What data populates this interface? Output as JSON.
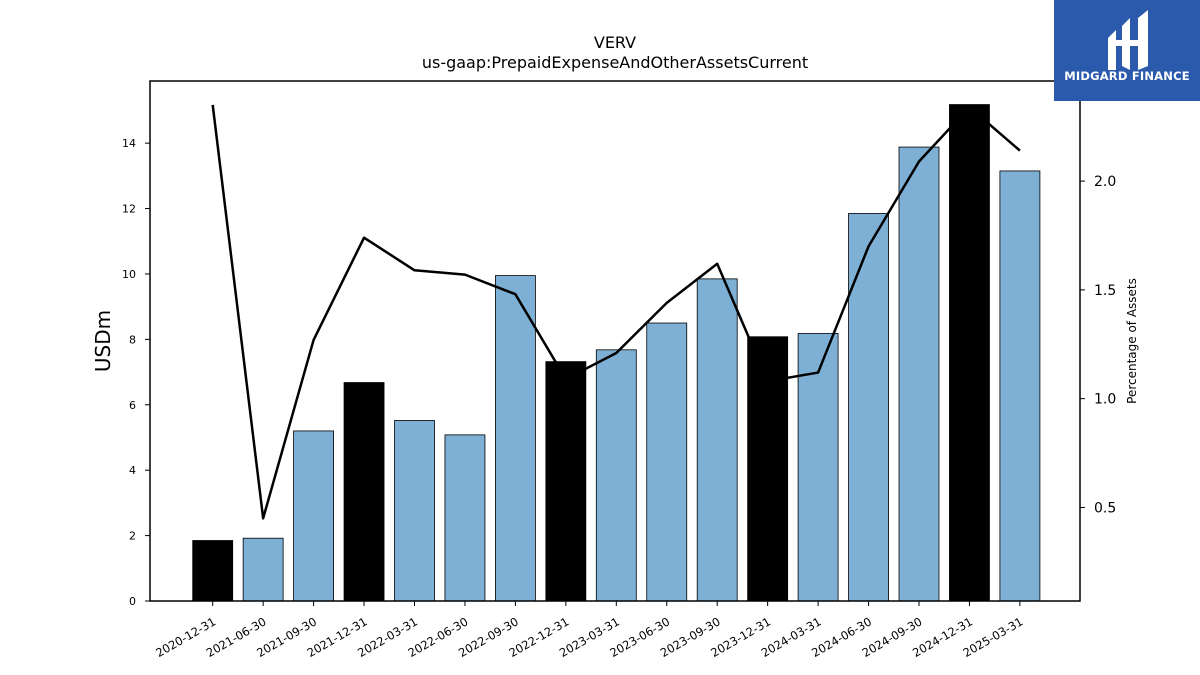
{
  "chart_data": {
    "type": "bar",
    "title": "VERV",
    "subtitle": "us-gaap:PrepaidExpenseAndOtherAssetsCurrent",
    "ylabel": "USDm",
    "y2label": "Percentage of Assets",
    "categories": [
      "2020-12-31",
      "2021-06-30",
      "2021-09-30",
      "2021-12-31",
      "2022-03-31",
      "2022-06-30",
      "2022-09-30",
      "2022-12-31",
      "2023-03-31",
      "2023-06-30",
      "2023-09-30",
      "2023-12-31",
      "2024-03-31",
      "2024-06-30",
      "2024-09-30",
      "2024-12-31",
      "2025-03-31"
    ],
    "series": [
      {
        "type": "bar",
        "values": [
          1.85,
          1.92,
          5.2,
          6.68,
          5.52,
          5.08,
          9.95,
          7.32,
          7.68,
          8.5,
          9.85,
          8.08,
          8.18,
          11.85,
          13.88,
          15.18,
          13.15
        ],
        "fiscal_year_end": [
          true,
          false,
          false,
          true,
          false,
          false,
          false,
          true,
          false,
          false,
          false,
          true,
          false,
          false,
          false,
          true,
          false
        ]
      },
      {
        "type": "line",
        "axis": "right",
        "values": [
          2.35,
          0.45,
          1.27,
          1.74,
          1.59,
          1.57,
          1.48,
          1.09,
          1.21,
          1.44,
          1.62,
          1.08,
          1.12,
          1.7,
          2.09,
          2.34,
          2.14
        ]
      }
    ],
    "ylim": [
      0,
      15.9
    ],
    "yticks": [
      0,
      2,
      4,
      6,
      8,
      10,
      12,
      14
    ],
    "y2lim": [
      0.07,
      2.46
    ],
    "y2ticks": [
      0.5,
      1.0,
      1.5,
      2.0
    ],
    "y2tick_labels": [
      "0.5",
      "1.0",
      "1.5",
      "2.0"
    ],
    "colors": {
      "bar": "#7eb0d5",
      "bar_fiscal_year_end": "#000000",
      "line": "#000000"
    },
    "grid": false,
    "legend": "none"
  },
  "logo": {
    "text": "MIDGARD FINANCE",
    "background": "#2b5aad"
  }
}
